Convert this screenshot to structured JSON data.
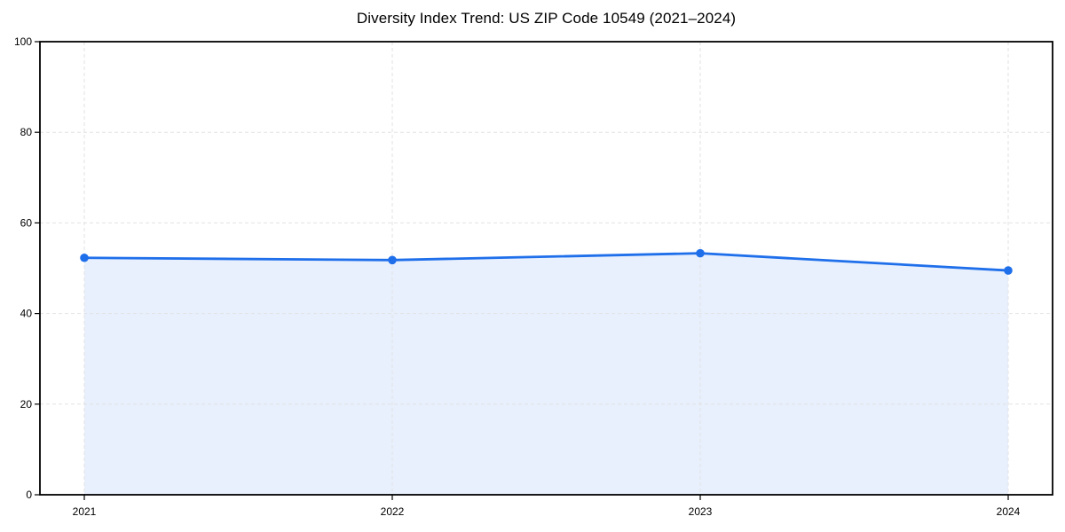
{
  "figure": {
    "background": "#ffffff"
  },
  "chart_data": {
    "type": "line",
    "title": "Diversity Index Trend: US ZIP Code 10549 (2021–2024)",
    "x": [
      "2021",
      "2022",
      "2023",
      "2024"
    ],
    "series": [
      {
        "name": "Diversity Index",
        "values": [
          52.3,
          51.8,
          53.3,
          49.5
        ]
      }
    ],
    "xlabel": "",
    "ylabel": "",
    "ylim": [
      0,
      100
    ],
    "yticks": [
      0,
      20,
      40,
      60,
      80,
      100
    ],
    "grid": true,
    "grid_style": "dashed",
    "legend": "none",
    "area_fill": true,
    "marker": "circle",
    "colors": {
      "line": "#1f6feb",
      "marker": "#1f6feb",
      "area_fill": "#e8f0fd",
      "grid": "#e2e2e2",
      "axis": "#000000",
      "tick_text": "#000000",
      "title_text": "#000000",
      "background": "#ffffff"
    }
  }
}
